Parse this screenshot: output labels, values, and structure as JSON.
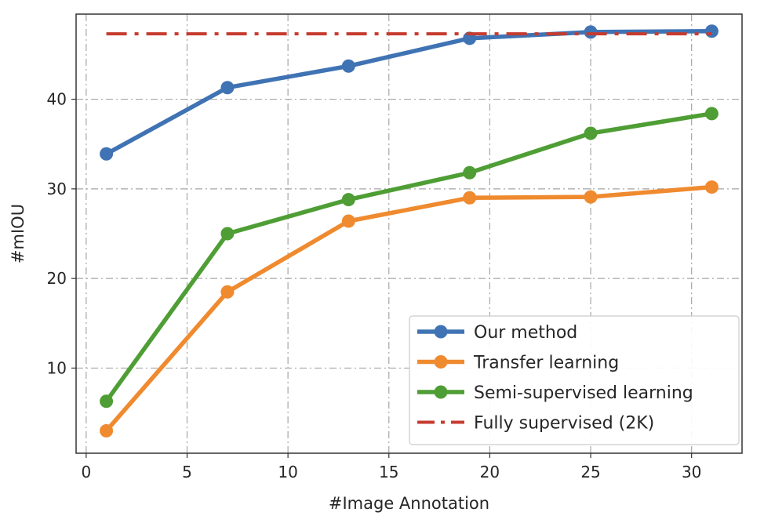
{
  "chart_data": {
    "type": "line",
    "xlabel": "#Image Annotation",
    "ylabel": "#mIOU",
    "xlim": [
      -0.5,
      32.5
    ],
    "ylim": [
      0.5,
      49.5
    ],
    "xticks": [
      0,
      5,
      10,
      15,
      20,
      25,
      30
    ],
    "yticks": [
      10,
      20,
      30,
      40
    ],
    "grid": true,
    "legend_position": "lower-right",
    "x": [
      1,
      7,
      13,
      19,
      25,
      31
    ],
    "series": [
      {
        "name": "Our method",
        "color": "#3f73b4",
        "style": "solid-marker",
        "values": [
          33.9,
          41.3,
          43.7,
          46.8,
          47.5,
          47.6
        ]
      },
      {
        "name": "Transfer learning",
        "color": "#ef8a2f",
        "style": "solid-marker",
        "values": [
          3.0,
          18.5,
          26.4,
          29.0,
          29.1,
          30.2
        ]
      },
      {
        "name": "Semi-supervised learning",
        "color": "#4f9e35",
        "style": "solid-marker",
        "values": [
          6.3,
          25.0,
          28.8,
          31.8,
          36.2,
          38.4
        ]
      },
      {
        "name": "Fully supervised (2K)",
        "color": "#c63b2f",
        "style": "dashdot",
        "values": [
          47.3,
          47.3,
          47.3,
          47.3,
          47.3,
          47.3
        ]
      }
    ]
  }
}
